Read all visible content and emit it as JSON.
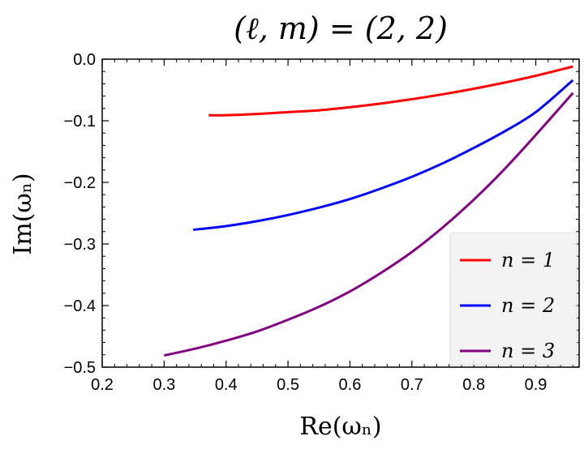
{
  "chart_data": {
    "type": "line",
    "title": "(ℓ, m) = (2, 2)",
    "xlabel": "Re(ωₙ)",
    "ylabel": "Im(ωₙ)",
    "xlim": [
      0.2,
      0.97
    ],
    "ylim": [
      -0.5,
      0.0
    ],
    "x_ticks": [
      "0.2",
      "0.3",
      "0.4",
      "0.5",
      "0.6",
      "0.7",
      "0.8",
      "0.9"
    ],
    "y_ticks": [
      "0.0",
      "−0.1",
      "−0.2",
      "−0.3",
      "−0.4",
      "−0.5"
    ],
    "x_tick_values": [
      0.2,
      0.3,
      0.4,
      0.5,
      0.6,
      0.7,
      0.8,
      0.9
    ],
    "y_tick_values": [
      0.0,
      -0.1,
      -0.2,
      -0.3,
      -0.4,
      -0.5
    ],
    "legend_position": "bottom-right",
    "series": [
      {
        "name": "n = 1",
        "color": "#ff0000",
        "x": [
          0.372,
          0.4,
          0.45,
          0.5,
          0.55,
          0.6,
          0.65,
          0.7,
          0.75,
          0.8,
          0.85,
          0.9,
          0.96
        ],
        "y": [
          -0.091,
          -0.091,
          -0.089,
          -0.086,
          -0.083,
          -0.078,
          -0.072,
          -0.065,
          -0.057,
          -0.048,
          -0.038,
          -0.027,
          -0.012
        ]
      },
      {
        "name": "n = 2",
        "color": "#0000ff",
        "x": [
          0.347,
          0.4,
          0.45,
          0.5,
          0.55,
          0.6,
          0.65,
          0.7,
          0.75,
          0.8,
          0.85,
          0.9,
          0.96
        ],
        "y": [
          -0.277,
          -0.271,
          -0.263,
          -0.253,
          -0.241,
          -0.227,
          -0.21,
          -0.191,
          -0.169,
          -0.144,
          -0.117,
          -0.086,
          -0.034
        ]
      },
      {
        "name": "n = 3",
        "color": "#800080",
        "x": [
          0.3,
          0.35,
          0.4,
          0.45,
          0.5,
          0.55,
          0.6,
          0.65,
          0.7,
          0.75,
          0.8,
          0.85,
          0.9,
          0.96
        ],
        "y": [
          -0.481,
          -0.47,
          -0.457,
          -0.442,
          -0.423,
          -0.402,
          -0.377,
          -0.347,
          -0.313,
          -0.273,
          -0.228,
          -0.178,
          -0.123,
          -0.055
        ]
      }
    ],
    "legend": [
      {
        "label": "n = 1",
        "color": "#ff0000"
      },
      {
        "label": "n = 2",
        "color": "#0000ff"
      },
      {
        "label": "n = 3",
        "color": "#800080"
      }
    ]
  }
}
